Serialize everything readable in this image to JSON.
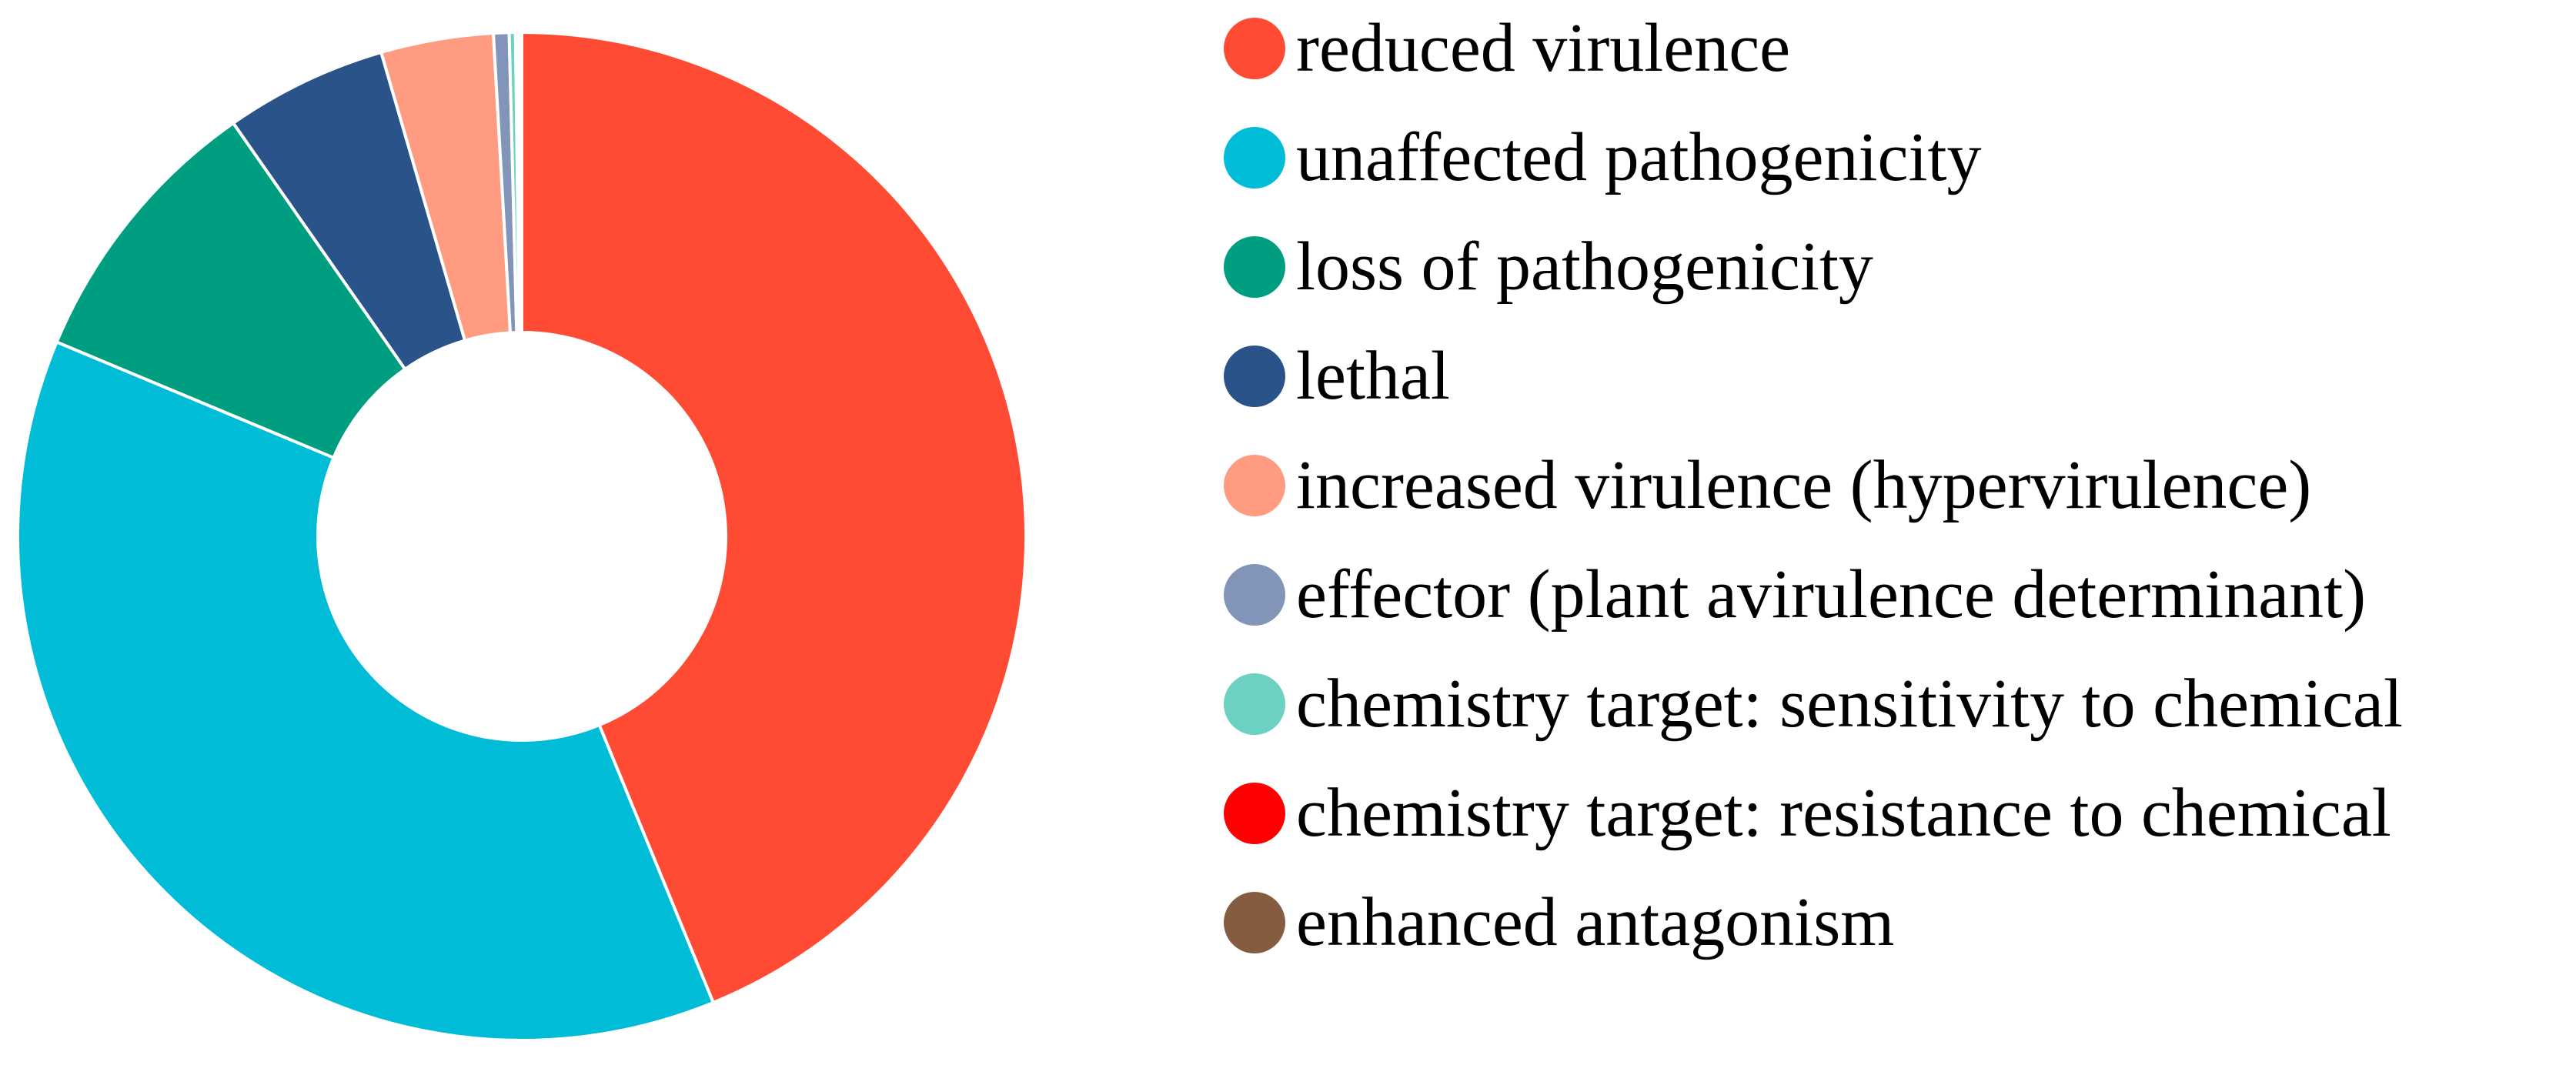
{
  "chart_data": {
    "type": "pie",
    "variant": "donut",
    "title": "",
    "legend_position": "right",
    "categories": [
      "reduced virulence",
      "unaffected pathogenicity",
      "loss of pathogenicity",
      "lethal",
      "increased virulence (hypervirulence)",
      "effector (plant avirulence determinant)",
      "chemistry target: sensitivity to chemical",
      "chemistry target: resistance to chemical",
      "enhanced antagonism"
    ],
    "values": [
      43.8,
      37.5,
      9.0,
      5.2,
      3.6,
      0.5,
      0.2,
      0.1,
      0.1
    ],
    "colors": [
      "#FF4B33",
      "#00BCD6",
      "#009E80",
      "#2A5389",
      "#FF9B80",
      "#8295B8",
      "#6DD1C2",
      "#FF0000",
      "#865C40"
    ]
  }
}
